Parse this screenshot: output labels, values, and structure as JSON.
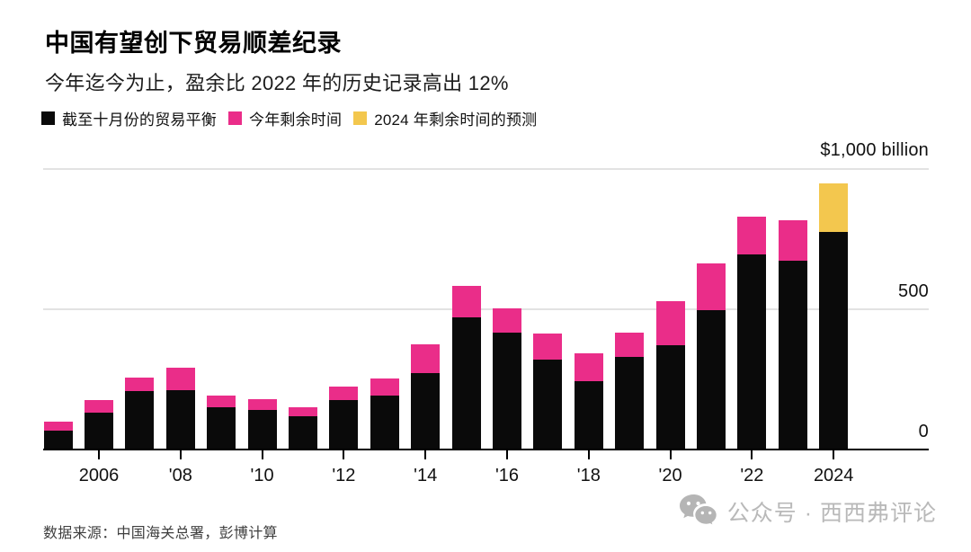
{
  "page": {
    "title": "中国有望创下贸易顺差纪录",
    "subtitle": "今年迄今为止，盈余比 2022 年的历史记录高出 12%",
    "source": "数据来源：中国海关总署，彭博计算",
    "watermark": "公众号 · 西西弗评论"
  },
  "colors": {
    "balance_black": "#0a0a0a",
    "rest_pink": "#ea2d89",
    "forecast_yellow": "#f3c74e",
    "gridline": "#e2e2e2",
    "watermark_gray": "#b9b9b9"
  },
  "chart_data": {
    "type": "bar",
    "stacked": true,
    "title": "中国有望创下贸易顺差纪录",
    "subtitle": "今年迄今为止，盈余比 2022 年的历史记录高出 12%",
    "ylabel": "$ billion",
    "ylim": [
      0,
      1000
    ],
    "grid": "horizontal",
    "legend_position": "top-left",
    "yticks": [
      {
        "value": 1000,
        "label": "$1,000 billion"
      },
      {
        "value": 500,
        "label": "500"
      },
      {
        "value": 0,
        "label": "0"
      }
    ],
    "legend": [
      {
        "label": "截至十月份的贸易平衡",
        "color_key": "balance_black"
      },
      {
        "label": "今年剩余时间",
        "color_key": "rest_pink"
      },
      {
        "label": "2024 年剩余时间的预测",
        "color_key": "forecast_yellow"
      }
    ],
    "years": [
      2005,
      2006,
      2007,
      2008,
      2009,
      2010,
      2011,
      2012,
      2013,
      2014,
      2015,
      2016,
      2017,
      2018,
      2019,
      2020,
      2021,
      2022,
      2023,
      2024
    ],
    "series": [
      {
        "name": "截至十月份的贸易平衡",
        "color_key": "balance_black",
        "values": [
          66,
          130,
          207,
          212,
          150,
          141,
          118,
          175,
          191,
          271,
          472,
          417,
          322,
          245,
          331,
          373,
          497,
          694,
          672,
          777
        ]
      },
      {
        "name": "今年剩余时间",
        "color_key": "rest_pink",
        "values": [
          34,
          47,
          48,
          80,
          42,
          38,
          33,
          48,
          62,
          105,
          111,
          86,
          92,
          99,
          86,
          156,
          166,
          137,
          144,
          0
        ]
      },
      {
        "name": "2024 年剩余时间的预测",
        "color_key": "forecast_yellow",
        "values": [
          0,
          0,
          0,
          0,
          0,
          0,
          0,
          0,
          0,
          0,
          0,
          0,
          0,
          0,
          0,
          0,
          0,
          0,
          0,
          171
        ]
      }
    ],
    "xticks": [
      {
        "year": 2006,
        "label": "2006"
      },
      {
        "year": 2008,
        "label": "'08"
      },
      {
        "year": 2010,
        "label": "'10"
      },
      {
        "year": 2012,
        "label": "'12"
      },
      {
        "year": 2014,
        "label": "'14"
      },
      {
        "year": 2016,
        "label": "'16"
      },
      {
        "year": 2018,
        "label": "'18"
      },
      {
        "year": 2020,
        "label": "'20"
      },
      {
        "year": 2022,
        "label": "'22"
      },
      {
        "year": 2024,
        "label": "2024"
      }
    ]
  }
}
